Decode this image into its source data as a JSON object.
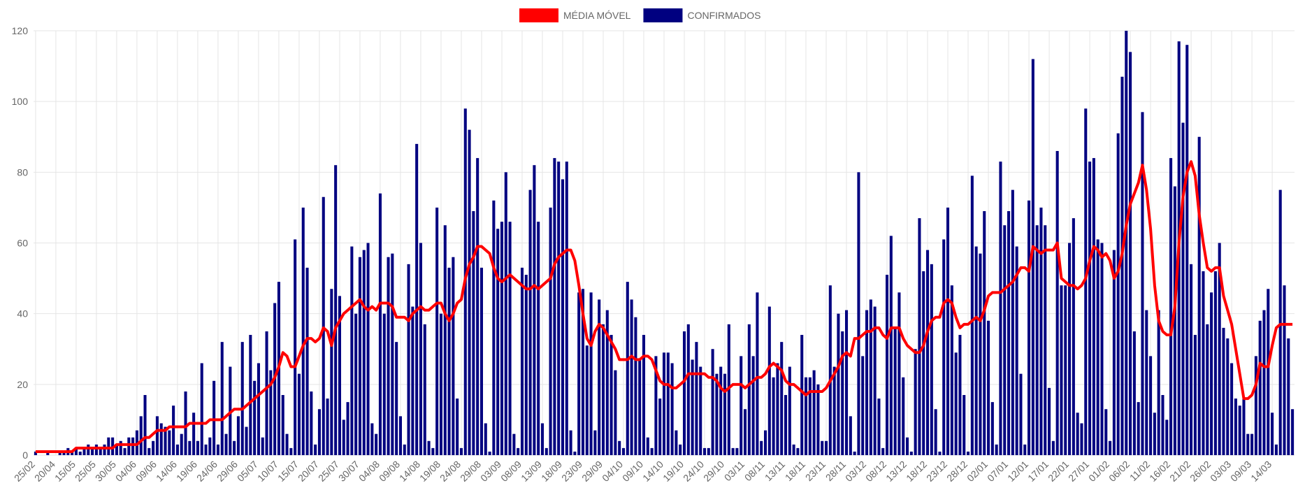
{
  "chart_data": {
    "type": "bar",
    "categories": [
      "25/02",
      null,
      null,
      null,
      null,
      "20/04",
      null,
      null,
      null,
      null,
      "15/05",
      null,
      null,
      null,
      null,
      "25/05",
      null,
      null,
      null,
      null,
      "30/05",
      null,
      null,
      null,
      null,
      "04/06",
      null,
      null,
      null,
      null,
      "09/06",
      null,
      null,
      null,
      null,
      "14/06",
      null,
      null,
      null,
      null,
      "19/06",
      null,
      null,
      null,
      null,
      "24/06",
      null,
      null,
      null,
      null,
      "29/06",
      null,
      null,
      null,
      null,
      "05/07",
      null,
      null,
      null,
      null,
      "10/07",
      null,
      null,
      null,
      null,
      "15/07",
      null,
      null,
      null,
      null,
      "20/07",
      null,
      null,
      null,
      null,
      "25/07",
      null,
      null,
      null,
      null,
      "30/07",
      null,
      null,
      null,
      null,
      "04/08",
      null,
      null,
      null,
      null,
      "09/08",
      null,
      null,
      null,
      null,
      "14/08",
      null,
      null,
      null,
      null,
      "19/08",
      null,
      null,
      null,
      null,
      "24/08",
      null,
      null,
      null,
      null,
      "29/08",
      null,
      null,
      null,
      null,
      "03/09",
      null,
      null,
      null,
      null,
      "08/09",
      null,
      null,
      null,
      null,
      "13/09",
      null,
      null,
      null,
      null,
      "18/09",
      null,
      null,
      null,
      null,
      "23/09",
      null,
      null,
      null,
      null,
      "29/09",
      null,
      null,
      null,
      null,
      "04/10",
      null,
      null,
      null,
      null,
      "09/10",
      null,
      null,
      null,
      null,
      "14/10",
      null,
      null,
      null,
      null,
      "19/10",
      null,
      null,
      null,
      null,
      "24/10",
      null,
      null,
      null,
      null,
      "29/10",
      null,
      null,
      null,
      null,
      "03/11",
      null,
      null,
      null,
      null,
      "08/11",
      null,
      null,
      null,
      null,
      "13/11",
      null,
      null,
      null,
      null,
      "18/11",
      null,
      null,
      null,
      null,
      "23/11",
      null,
      null,
      null,
      null,
      "28/11",
      null,
      null,
      null,
      null,
      "03/12",
      null,
      null,
      null,
      null,
      "08/12",
      null,
      null,
      null,
      null,
      "13/12",
      null,
      null,
      null,
      null,
      "18/12",
      null,
      null,
      null,
      null,
      "23/12",
      null,
      null,
      null,
      null,
      "28/12",
      null,
      null,
      null,
      null,
      "02/01",
      null,
      null,
      null,
      null,
      "07/01",
      null,
      null,
      null,
      null,
      "12/01",
      null,
      null,
      null,
      null,
      "17/01",
      null,
      null,
      null,
      null,
      "22/01",
      null,
      null,
      null,
      null,
      "27/01",
      null,
      null,
      null,
      null,
      "01/02",
      null,
      null,
      null,
      null,
      "06/02",
      null,
      null,
      null,
      null,
      "11/02",
      null,
      null,
      null,
      null,
      "16/02",
      null,
      null,
      null,
      null,
      "21/02",
      null,
      null,
      null,
      null,
      "26/02",
      null,
      null,
      null,
      null,
      "03/03",
      null,
      null,
      null,
      null,
      "09/03",
      null,
      null,
      null,
      null,
      "14/03",
      null,
      null,
      null,
      null,
      null
    ],
    "series": [
      {
        "name": "MÉDIA MÓVEL",
        "type": "line",
        "color": "#ff0000",
        "values": [
          1,
          1,
          1,
          1,
          1,
          1,
          1,
          1,
          1,
          1,
          2,
          2,
          2,
          2,
          2,
          2,
          2,
          2,
          2,
          2,
          3,
          3,
          3,
          3,
          3,
          3,
          4,
          5,
          5,
          6,
          7,
          7,
          7,
          8,
          8,
          8,
          8,
          8,
          9,
          9,
          9,
          9,
          9,
          10,
          10,
          10,
          10,
          11,
          12,
          13,
          13,
          13,
          14,
          15,
          16,
          17,
          18,
          19,
          20,
          22,
          25,
          29,
          28,
          25,
          25,
          28,
          31,
          33,
          33,
          32,
          33,
          36,
          35,
          31,
          36,
          38,
          40,
          41,
          42,
          43,
          44,
          42,
          41,
          42,
          41,
          43,
          43,
          43,
          42,
          39,
          39,
          39,
          38,
          40,
          41,
          42,
          41,
          41,
          42,
          43,
          43,
          40,
          38,
          40,
          43,
          44,
          50,
          54,
          56,
          59,
          59,
          58,
          57,
          53,
          50,
          49,
          50,
          51,
          50,
          49,
          48,
          47,
          47,
          48,
          47,
          48,
          49,
          50,
          54,
          56,
          57,
          58,
          58,
          55,
          48,
          40,
          33,
          31,
          35,
          37,
          36,
          34,
          32,
          30,
          27,
          27,
          27,
          28,
          27,
          27,
          28,
          28,
          27,
          24,
          21,
          20,
          20,
          19,
          19,
          20,
          21,
          23,
          23,
          23,
          23,
          23,
          22,
          22,
          21,
          19,
          18,
          19,
          20,
          20,
          20,
          19,
          20,
          21,
          22,
          22,
          23,
          25,
          26,
          25,
          24,
          21,
          20,
          20,
          19,
          18,
          17,
          18,
          18,
          18,
          18,
          19,
          21,
          23,
          25,
          28,
          29,
          28,
          33,
          33,
          34,
          35,
          35,
          36,
          36,
          34,
          33,
          36,
          36,
          36,
          33,
          31,
          30,
          29,
          29,
          31,
          35,
          38,
          39,
          39,
          43,
          44,
          43,
          39,
          36,
          37,
          37,
          38,
          39,
          38,
          41,
          45,
          46,
          46,
          46,
          47,
          48,
          49,
          51,
          53,
          53,
          52,
          59,
          58,
          57,
          58,
          58,
          58,
          60,
          50,
          49,
          48,
          48,
          47,
          48,
          50,
          55,
          59,
          58,
          56,
          57,
          55,
          50,
          52,
          57,
          65,
          71,
          74,
          77,
          82,
          75,
          64,
          48,
          38,
          35,
          34,
          34,
          42,
          60,
          73,
          80,
          83,
          79,
          68,
          60,
          53,
          52,
          53,
          53,
          45,
          41,
          37,
          30,
          23,
          16,
          16,
          17,
          20,
          26,
          25,
          25,
          31,
          36,
          37,
          37,
          37,
          37
        ]
      },
      {
        "name": "CONFIRMADOS",
        "type": "bar",
        "color": "#000080",
        "values": [
          1,
          0,
          0,
          1,
          0,
          0,
          1,
          1,
          2,
          1,
          2,
          1,
          2,
          3,
          2,
          3,
          2,
          3,
          5,
          5,
          3,
          4,
          2,
          5,
          5,
          7,
          11,
          17,
          2,
          4,
          11,
          9,
          8,
          7,
          14,
          3,
          6,
          18,
          4,
          12,
          4,
          26,
          3,
          5,
          21,
          3,
          32,
          6,
          25,
          4,
          11,
          32,
          8,
          34,
          21,
          26,
          5,
          35,
          24,
          43,
          49,
          17,
          6,
          2,
          61,
          23,
          70,
          53,
          18,
          3,
          13,
          73,
          16,
          47,
          82,
          45,
          10,
          15,
          59,
          40,
          56,
          58,
          60,
          9,
          6,
          74,
          40,
          56,
          57,
          32,
          11,
          3,
          54,
          42,
          88,
          60,
          37,
          4,
          2,
          70,
          40,
          65,
          53,
          56,
          16,
          2,
          98,
          92,
          69,
          84,
          53,
          9,
          1,
          72,
          64,
          66,
          80,
          66,
          6,
          2,
          53,
          51,
          75,
          82,
          66,
          9,
          2,
          70,
          84,
          83,
          78,
          83,
          7,
          1,
          46,
          47,
          31,
          46,
          7,
          44,
          37,
          41,
          34,
          24,
          4,
          2,
          49,
          44,
          39,
          27,
          34,
          5,
          2,
          28,
          16,
          29,
          29,
          26,
          7,
          3,
          35,
          37,
          27,
          32,
          25,
          2,
          2,
          30,
          23,
          25,
          23,
          37,
          2,
          2,
          28,
          13,
          37,
          28,
          46,
          4,
          7,
          42,
          22,
          26,
          32,
          17,
          25,
          3,
          2,
          34,
          22,
          22,
          24,
          20,
          4,
          4,
          48,
          25,
          40,
          35,
          41,
          11,
          1,
          80,
          28,
          41,
          44,
          42,
          16,
          2,
          51,
          62,
          36,
          46,
          22,
          5,
          1,
          30,
          67,
          52,
          58,
          54,
          13,
          1,
          61,
          70,
          48,
          29,
          34,
          17,
          1,
          79,
          59,
          57,
          69,
          38,
          15,
          3,
          83,
          65,
          69,
          75,
          59,
          23,
          3,
          72,
          112,
          65,
          70,
          65,
          19,
          4,
          86,
          48,
          48,
          60,
          67,
          12,
          9,
          98,
          83,
          84,
          61,
          60,
          13,
          4,
          58,
          91,
          107,
          120,
          114,
          35,
          15,
          97,
          41,
          28,
          12,
          41,
          17,
          10,
          84,
          76,
          117,
          94,
          116,
          54,
          34,
          90,
          52,
          37,
          46,
          52,
          60,
          36,
          33,
          26,
          16,
          14,
          16,
          6,
          6,
          28,
          38,
          41,
          47,
          12,
          3,
          75,
          48,
          33,
          13
        ]
      }
    ],
    "ylim": [
      0,
      120
    ],
    "yticks": [
      0,
      20,
      40,
      60,
      80,
      100,
      120
    ],
    "grid": true,
    "legend": "top"
  }
}
